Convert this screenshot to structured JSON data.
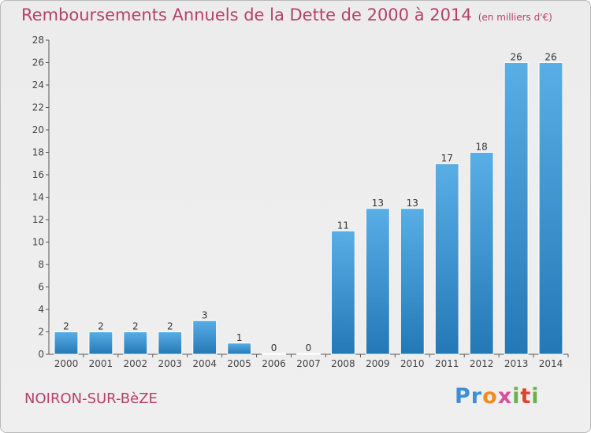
{
  "title": "Remboursements Annuels de la Dette de 2000 à 2014",
  "unit": "(en milliers d'€)",
  "place": "NOIRON-SUR-BèZE",
  "logo": "Proxiti",
  "colors": {
    "title": "#b5416b",
    "bar_light": "#5aaee6",
    "bar_dark": "#2478b6",
    "axis": "#555555"
  },
  "chart_data": {
    "type": "bar",
    "categories": [
      "2000",
      "2001",
      "2002",
      "2003",
      "2004",
      "2005",
      "2006",
      "2007",
      "2008",
      "2009",
      "2010",
      "2011",
      "2012",
      "2013",
      "2014"
    ],
    "values": [
      2,
      2,
      2,
      2,
      3,
      1,
      0,
      0,
      11,
      13,
      13,
      17,
      18,
      26,
      26
    ],
    "ylim": [
      0,
      28
    ],
    "yticks": [
      0,
      2,
      4,
      6,
      8,
      10,
      12,
      14,
      16,
      18,
      20,
      22,
      24,
      26,
      28
    ],
    "grid": false,
    "data_labels": true
  }
}
